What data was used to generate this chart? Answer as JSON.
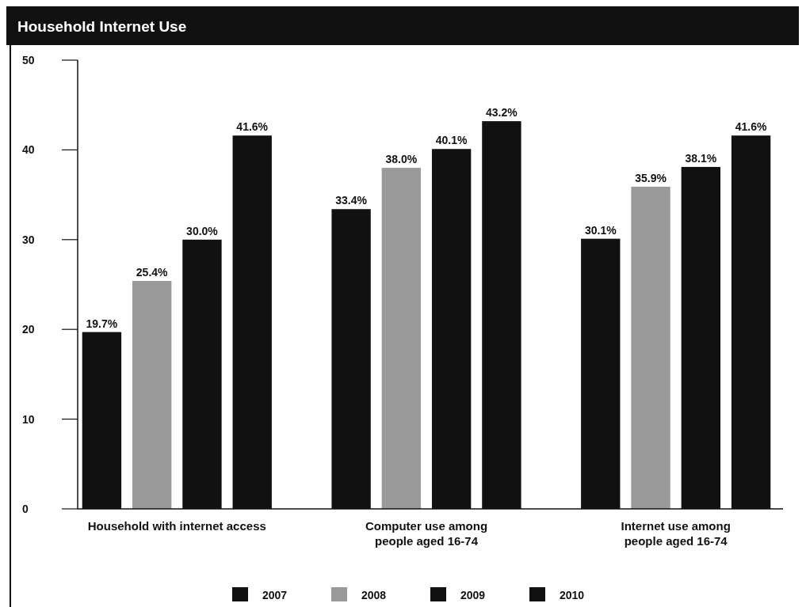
{
  "chart_data": {
    "type": "bar",
    "title": "Household Internet Use",
    "categories": [
      "Household with internet access",
      "Computer use among people aged 16-74",
      "Internet use among people aged 16-74"
    ],
    "series": [
      {
        "name": "2007",
        "color": "#111111",
        "values": [
          19.7,
          33.4,
          30.1
        ],
        "value_labels": [
          "19.7%",
          "33.4%",
          "30.1%"
        ]
      },
      {
        "name": "2008",
        "color": "#9a9a9a",
        "values": [
          25.4,
          38.0,
          35.9
        ],
        "value_labels": [
          "25.4%",
          "38.0%",
          "35.9%"
        ]
      },
      {
        "name": "2009",
        "color": "#111111",
        "values": [
          30.0,
          40.1,
          38.1
        ],
        "value_labels": [
          "30.0%",
          "40.1%",
          "38.1%"
        ]
      },
      {
        "name": "2010",
        "color": "#111111",
        "values": [
          41.6,
          43.2,
          41.6
        ],
        "value_labels": [
          "41.6%",
          "43.2%",
          "41.6%"
        ]
      }
    ],
    "ylim": [
      0,
      50
    ],
    "yticks": [
      0,
      10,
      20,
      30,
      40,
      50
    ],
    "legend": "bottom"
  }
}
